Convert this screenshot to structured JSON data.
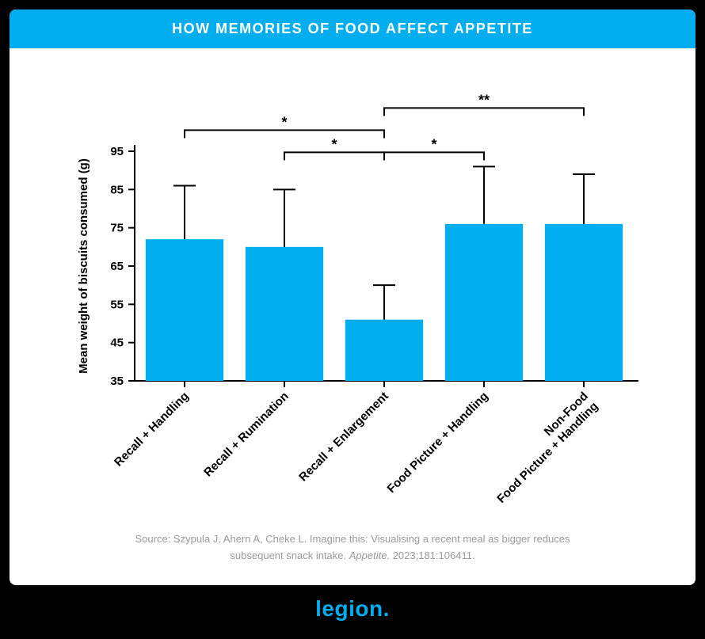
{
  "header": {
    "title": "HOW MEMORIES OF FOOD AFFECT APPETITE"
  },
  "chart": {
    "type": "bar",
    "ylabel": "Mean weight of biscuits consumed (g)",
    "ylim": [
      35,
      95
    ],
    "ytick_step": 10,
    "yticks": [
      35,
      45,
      55,
      65,
      75,
      85,
      95
    ],
    "categories": [
      "Recall + Handling",
      "Recall + Rumination",
      "Recall + Enlargement",
      "Food Picture + Handling",
      "Non-Food\nFood Picture + Handling"
    ],
    "values": [
      72,
      70,
      51,
      76,
      76
    ],
    "errors": [
      14,
      15,
      9,
      15,
      13
    ],
    "bar_color": "#00aeef",
    "bar_width": 0.78,
    "error_color": "#000000",
    "error_linewidth": 2,
    "axis_color": "#000000",
    "background_color": "#ffffff",
    "label_fontsize": 15,
    "tick_fontsize": 15,
    "significance": [
      {
        "from": 0,
        "to": 2,
        "label": "*",
        "level": 1
      },
      {
        "from": 1,
        "to": 2,
        "label": "*",
        "level": 0
      },
      {
        "from": 2,
        "to": 3,
        "label": "*",
        "level": 0
      },
      {
        "from": 2,
        "to": 4,
        "label": "**",
        "level": 2
      }
    ]
  },
  "source": {
    "line1": "Source: Szypula J, Ahern A, Cheke L. Imagine this: Visualising a recent meal as bigger reduces",
    "line2_pre": "subsequent snack intake. ",
    "line2_ital": "Appetite.",
    "line2_post": " 2023;181:106411."
  },
  "footer": {
    "logo_text": "legion",
    "logo_dot": "."
  },
  "colors": {
    "accent": "#00aeef",
    "card_bg": "#ffffff",
    "page_bg": "#000000",
    "muted": "#9a9a9a"
  }
}
